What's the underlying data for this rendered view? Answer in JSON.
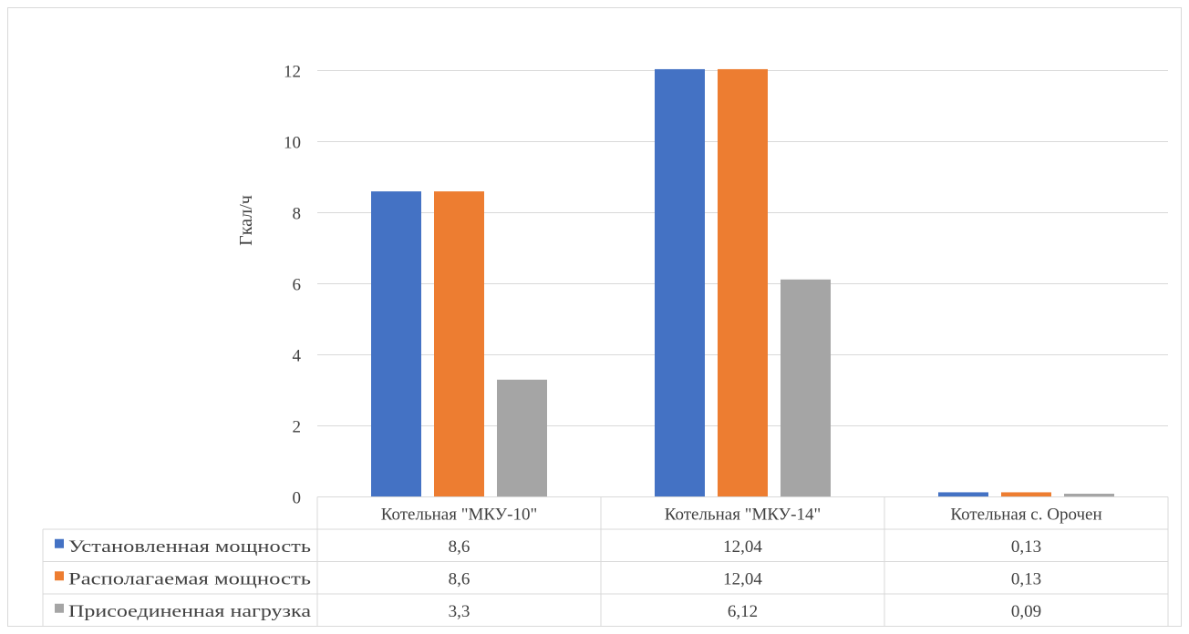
{
  "chart_data": {
    "type": "bar",
    "ylabel": "Гкал/ч",
    "ylim": [
      0,
      12
    ],
    "yticks": [
      0,
      2,
      4,
      6,
      8,
      10,
      12
    ],
    "grid": true,
    "legend": "data-table",
    "categories": [
      "Котельная \"МКУ-10\"",
      "Котельная \"МКУ-14\"",
      "Котельная с. Орочен"
    ],
    "series": [
      {
        "name": "Установленная мощность",
        "color": "#4472c4",
        "values": [
          8.6,
          12.04,
          0.13
        ],
        "labels": [
          "8,6",
          "12,04",
          "0,13"
        ]
      },
      {
        "name": "Располагаемая мощность",
        "color": "#ed7d31",
        "values": [
          8.6,
          12.04,
          0.13
        ],
        "labels": [
          "8,6",
          "12,04",
          "0,13"
        ]
      },
      {
        "name": "Присоединенная нагрузка",
        "color": "#a5a5a5",
        "values": [
          3.3,
          6.12,
          0.09
        ],
        "labels": [
          "3,3",
          "6,12",
          "0,09"
        ]
      }
    ]
  }
}
